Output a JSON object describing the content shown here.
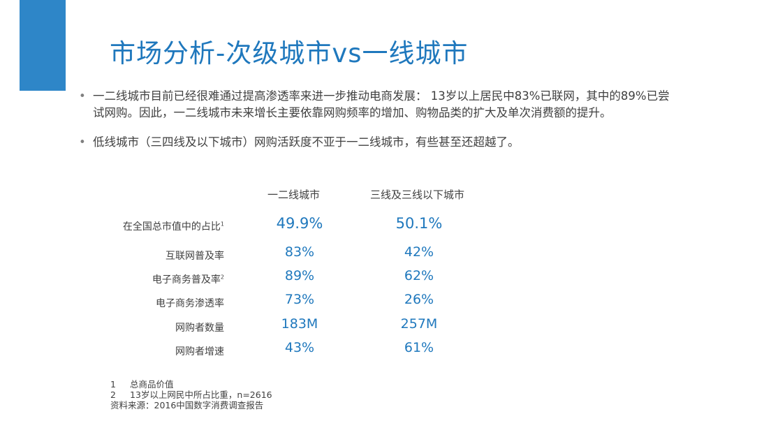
{
  "title": "市场分析-次级城市vs一线城市",
  "bullets": [
    "一二线城市目前已经很难通过提高渗透率来进一步推动电商发展： 13岁以上居民中83%已联网，其中的89%已尝试网购。因此，一二线城市未来增长主要依靠网购频率的增加、购物品类的扩大及单次消费额的提升。",
    "低线城市（三四线及以下城市）网购活跃度不亚于一二线城市，有些甚至还超越了。"
  ],
  "bullet_symbol": "•",
  "table": {
    "headers": [
      "一二线城市",
      "三线及三线以下城市"
    ],
    "rows": [
      {
        "label": "在全国总市值中的占比",
        "sup": "1",
        "v1": "49.9%",
        "v2": "50.1%"
      },
      {
        "label": "互联网普及率",
        "sup": "",
        "v1": "83%",
        "v2": "42%"
      },
      {
        "label": "电子商务普及率",
        "sup": "2",
        "v1": "89%",
        "v2": "62%"
      },
      {
        "label": "电子商务渗透率",
        "sup": "",
        "v1": "73%",
        "v2": "26%"
      },
      {
        "label": "网购者数量",
        "sup": "",
        "v1": "183M",
        "v2": "257M"
      },
      {
        "label": "网购者增速",
        "sup": "",
        "v1": "43%",
        "v2": "61%"
      }
    ]
  },
  "footnotes": [
    {
      "num": "1",
      "text": "总商品价值"
    },
    {
      "num": "2",
      "text": "13岁以上网民中所占比重，n=2616"
    }
  ],
  "source": "资料来源：2016中国数字消费调查报告",
  "colors": {
    "accent": "#2e86c8",
    "title": "#1f78bd",
    "text": "#404040"
  }
}
